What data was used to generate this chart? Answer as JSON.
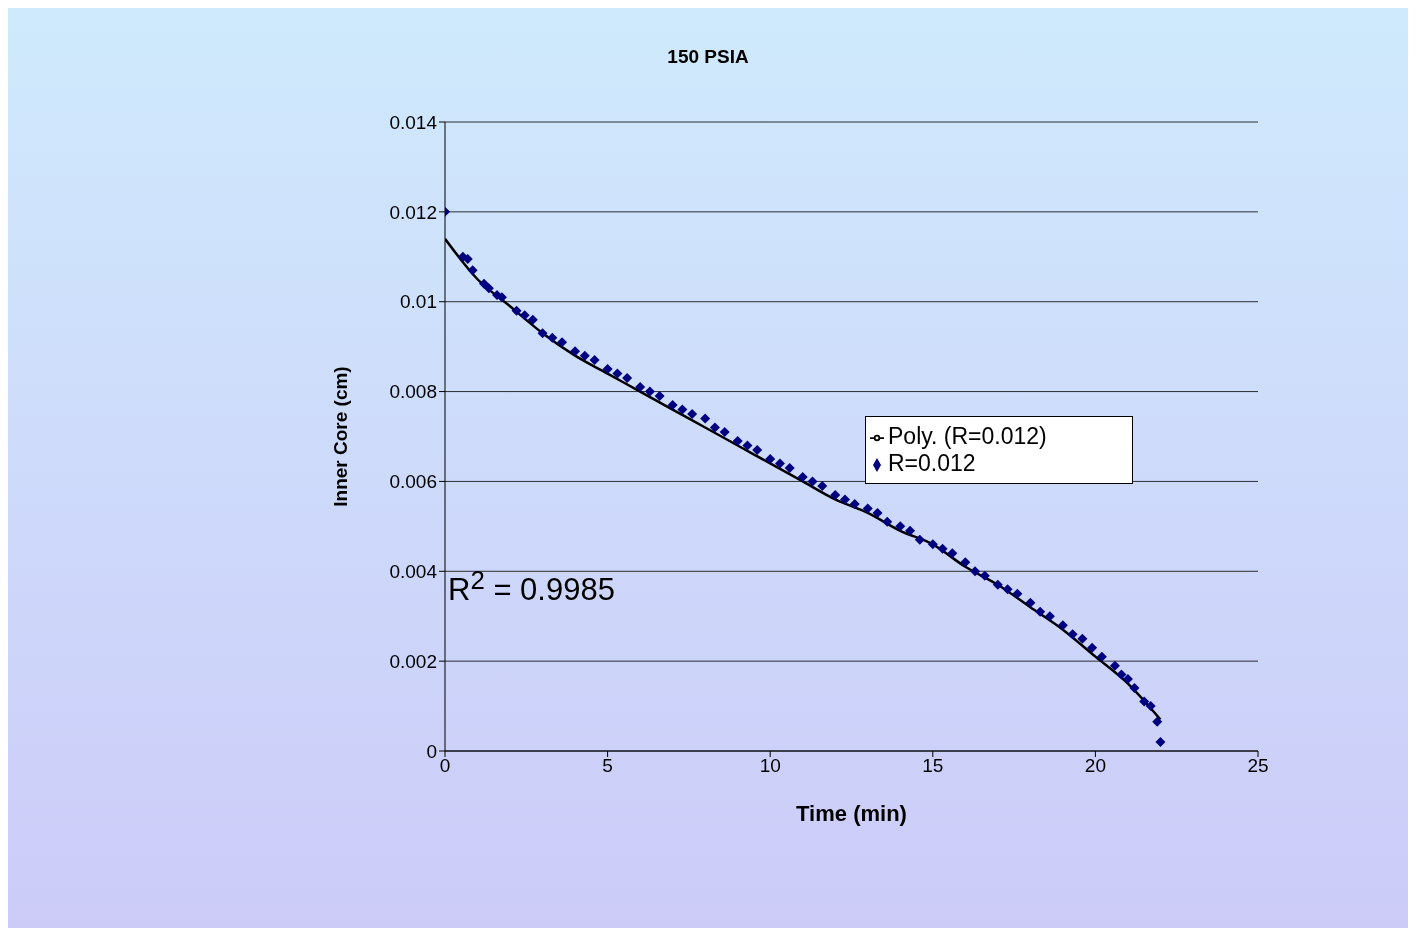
{
  "chart_data": {
    "type": "scatter",
    "title": "150 PSIA",
    "xlabel": "Time (min)",
    "ylabel": "Inner Core (cm)",
    "xlim": [
      0,
      25
    ],
    "xticks": [
      0,
      5,
      10,
      15,
      20,
      25
    ],
    "ylim": [
      0,
      0.014
    ],
    "yticks": [
      0,
      0.002,
      0.004,
      0.006,
      0.008,
      0.01,
      0.012,
      0.014
    ],
    "grid": "y",
    "legend": "right",
    "marker": "diamond",
    "annotations": [
      "R$^{2}$ = 0.9985"
    ],
    "series": [
      {
        "name": "R=0.012",
        "color": "#000080",
        "x": [
          0,
          0.55,
          0.7,
          0.85,
          1.2,
          1.35,
          1.6,
          1.75,
          2.2,
          2.45,
          2.7,
          3.0,
          3.3,
          3.6,
          4.0,
          4.3,
          4.6,
          5.0,
          5.3,
          5.6,
          6.0,
          6.3,
          6.6,
          7.0,
          7.3,
          7.6,
          8.0,
          8.3,
          8.6,
          9.0,
          9.3,
          9.6,
          10.0,
          10.3,
          10.6,
          11.0,
          11.3,
          11.6,
          12.0,
          12.3,
          12.6,
          13.0,
          13.3,
          13.6,
          14.0,
          14.3,
          14.6,
          15.0,
          15.3,
          15.6,
          16.0,
          16.3,
          16.6,
          17.0,
          17.3,
          17.6,
          18.0,
          18.3,
          18.6,
          19.0,
          19.3,
          19.6,
          19.9,
          20.2,
          20.6,
          20.8,
          21.0,
          21.2,
          21.5,
          21.7,
          21.9,
          22.0
        ],
        "values": [
          0.012,
          0.011,
          0.01095,
          0.0107,
          0.0104,
          0.0103,
          0.01015,
          0.0101,
          0.0098,
          0.0097,
          0.0096,
          0.0093,
          0.0092,
          0.0091,
          0.0089,
          0.0088,
          0.0087,
          0.0085,
          0.0084,
          0.0083,
          0.0081,
          0.008,
          0.0079,
          0.0077,
          0.0076,
          0.0075,
          0.0074,
          0.0072,
          0.0071,
          0.0069,
          0.0068,
          0.0067,
          0.0065,
          0.0064,
          0.0063,
          0.0061,
          0.006,
          0.0059,
          0.0057,
          0.0056,
          0.0055,
          0.0054,
          0.0053,
          0.0051,
          0.005,
          0.0049,
          0.0047,
          0.0046,
          0.0045,
          0.0044,
          0.0042,
          0.004,
          0.0039,
          0.0037,
          0.0036,
          0.0035,
          0.0033,
          0.0031,
          0.003,
          0.0028,
          0.0026,
          0.0025,
          0.0023,
          0.0021,
          0.0019,
          0.0017,
          0.0016,
          0.0014,
          0.0011,
          0.001,
          0.00065,
          0.0002
        ]
      },
      {
        "name": "Poly. (R=0.012)",
        "type": "line",
        "color": "#000000",
        "marker": "none",
        "line_style": "solid",
        "x": [
          0,
          1,
          2,
          3,
          4,
          5,
          6,
          7,
          8,
          9,
          10,
          11,
          12,
          13,
          14,
          15,
          16,
          17,
          18,
          19,
          20,
          21,
          22
        ],
        "values": [
          0.0114,
          0.0105,
          0.0099,
          0.0093,
          0.0088,
          0.0084,
          0.008,
          0.0076,
          0.0072,
          0.0068,
          0.0064,
          0.006,
          0.0056,
          0.0053,
          0.0049,
          0.0046,
          0.0041,
          0.0037,
          0.0032,
          0.0027,
          0.0021,
          0.0015,
          0.0007
        ]
      }
    ]
  }
}
